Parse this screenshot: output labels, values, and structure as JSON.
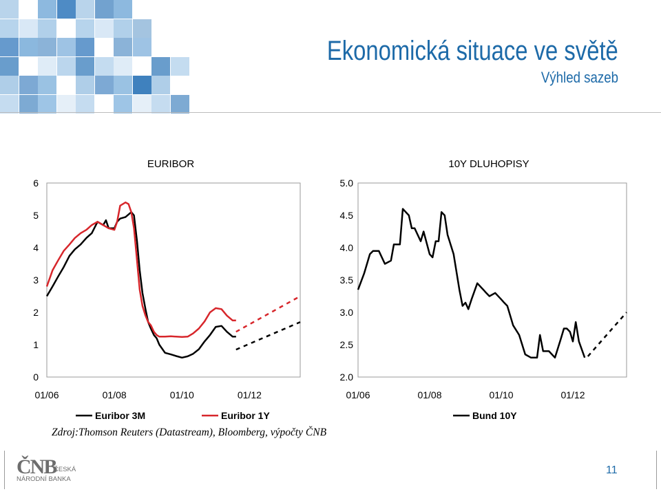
{
  "slide": {
    "title": "Ekonomická situace ve světě",
    "subtitle": "Výhled sazeb",
    "source": "Zdroj:Thomson Reuters (Datastream), Bloomberg, výpočty ČNB",
    "page_number": "11",
    "logo": {
      "mark": "ČNB",
      "line1": "ČESKÁ",
      "line2": "NÁRODNÍ BANKA"
    }
  },
  "colors": {
    "brand_blue": "#1d6aa8",
    "series_black": "#000000",
    "series_red": "#d7262b"
  },
  "chart_data": [
    {
      "type": "line",
      "title": "EURIBOR",
      "xlabel": "",
      "ylabel": "",
      "x_ticks": [
        "01/06",
        "01/08",
        "01/10",
        "01/12"
      ],
      "y_ticks": [
        "0",
        "1",
        "2",
        "3",
        "4",
        "5",
        "6"
      ],
      "ylim": [
        0,
        6
      ],
      "xlim": [
        2006.0,
        2013.5
      ],
      "grid": false,
      "legend": "bottom",
      "series": [
        {
          "name": "Euribor 3M",
          "color": "#000000",
          "x": [
            2006.0,
            2006.17,
            2006.33,
            2006.5,
            2006.67,
            2006.83,
            2007.0,
            2007.17,
            2007.33,
            2007.5,
            2007.67,
            2007.75,
            2007.83,
            2008.0,
            2008.08,
            2008.17,
            2008.33,
            2008.5,
            2008.58,
            2008.67,
            2008.75,
            2008.83,
            2008.92,
            2009.0,
            2009.08,
            2009.17,
            2009.25,
            2009.33,
            2009.5,
            2009.67,
            2009.83,
            2010.0,
            2010.17,
            2010.33,
            2010.5,
            2010.67,
            2010.83,
            2011.0,
            2011.17,
            2011.33,
            2011.5,
            2011.6
          ],
          "y": [
            2.5,
            2.8,
            3.1,
            3.4,
            3.75,
            3.95,
            4.1,
            4.3,
            4.45,
            4.8,
            4.7,
            4.85,
            4.6,
            4.6,
            4.8,
            4.9,
            4.95,
            5.1,
            5.0,
            4.2,
            3.3,
            2.6,
            2.1,
            1.7,
            1.5,
            1.3,
            1.2,
            1.0,
            0.75,
            0.7,
            0.65,
            0.6,
            0.64,
            0.72,
            0.86,
            1.1,
            1.3,
            1.55,
            1.58,
            1.4,
            1.25,
            1.25
          ],
          "forecast": {
            "x": [
              2011.6,
              2013.5
            ],
            "y": [
              0.85,
              1.7
            ]
          }
        },
        {
          "name": "Euribor 1Y",
          "color": "#d7262b",
          "x": [
            2006.0,
            2006.17,
            2006.33,
            2006.5,
            2006.67,
            2006.83,
            2007.0,
            2007.17,
            2007.33,
            2007.5,
            2007.67,
            2007.83,
            2008.0,
            2008.08,
            2008.17,
            2008.33,
            2008.42,
            2008.5,
            2008.58,
            2008.67,
            2008.75,
            2008.83,
            2008.92,
            2009.0,
            2009.08,
            2009.17,
            2009.25,
            2009.33,
            2009.5,
            2009.67,
            2009.83,
            2010.0,
            2010.17,
            2010.33,
            2010.5,
            2010.67,
            2010.83,
            2011.0,
            2011.17,
            2011.33,
            2011.5,
            2011.6
          ],
          "y": [
            2.8,
            3.3,
            3.6,
            3.9,
            4.1,
            4.3,
            4.45,
            4.55,
            4.7,
            4.8,
            4.7,
            4.6,
            4.55,
            4.8,
            5.3,
            5.4,
            5.35,
            5.1,
            4.6,
            3.6,
            2.7,
            2.2,
            1.9,
            1.7,
            1.6,
            1.4,
            1.3,
            1.25,
            1.25,
            1.26,
            1.25,
            1.24,
            1.25,
            1.35,
            1.5,
            1.72,
            2.0,
            2.13,
            2.1,
            1.9,
            1.75,
            1.75
          ],
          "forecast": {
            "x": [
              2011.6,
              2013.5
            ],
            "y": [
              1.4,
              2.5
            ]
          }
        }
      ]
    },
    {
      "type": "line",
      "title": "10Y DLUHOPISY",
      "xlabel": "",
      "ylabel": "",
      "x_ticks": [
        "01/06",
        "01/08",
        "01/10",
        "01/12"
      ],
      "y_ticks": [
        "2.0",
        "2.5",
        "3.0",
        "3.5",
        "4.0",
        "4.5",
        "5.0"
      ],
      "ylim": [
        2.0,
        5.0
      ],
      "xlim": [
        2006.0,
        2013.5
      ],
      "grid": false,
      "legend": "bottom",
      "series": [
        {
          "name": "Bund 10Y",
          "color": "#000000",
          "x": [
            2006.0,
            2006.17,
            2006.33,
            2006.42,
            2006.58,
            2006.75,
            2006.92,
            2007.0,
            2007.17,
            2007.25,
            2007.42,
            2007.5,
            2007.58,
            2007.75,
            2007.83,
            2008.0,
            2008.08,
            2008.17,
            2008.25,
            2008.33,
            2008.42,
            2008.5,
            2008.67,
            2008.83,
            2008.92,
            2009.0,
            2009.08,
            2009.17,
            2009.33,
            2009.5,
            2009.58,
            2009.67,
            2009.83,
            2010.0,
            2010.08,
            2010.17,
            2010.33,
            2010.5,
            2010.67,
            2010.83,
            2011.0,
            2011.08,
            2011.17,
            2011.33,
            2011.5,
            2011.67,
            2011.75,
            2011.83,
            2011.92,
            2012.0,
            2012.08,
            2012.17,
            2012.33
          ],
          "y": [
            3.35,
            3.6,
            3.9,
            3.95,
            3.95,
            3.75,
            3.8,
            4.05,
            4.05,
            4.6,
            4.5,
            4.3,
            4.3,
            4.1,
            4.25,
            3.9,
            3.85,
            4.1,
            4.1,
            4.55,
            4.5,
            4.2,
            3.9,
            3.35,
            3.1,
            3.15,
            3.05,
            3.2,
            3.45,
            3.35,
            3.3,
            3.25,
            3.3,
            3.2,
            3.15,
            3.1,
            2.8,
            2.65,
            2.35,
            2.3,
            2.3,
            2.65,
            2.4,
            2.4,
            2.3,
            2.6,
            2.75,
            2.75,
            2.7,
            2.55,
            2.85,
            2.55,
            2.3
          ],
          "forecast": {
            "x": [
              2012.42,
              2013.5
            ],
            "y": [
              2.32,
              3.0
            ]
          }
        }
      ]
    }
  ]
}
